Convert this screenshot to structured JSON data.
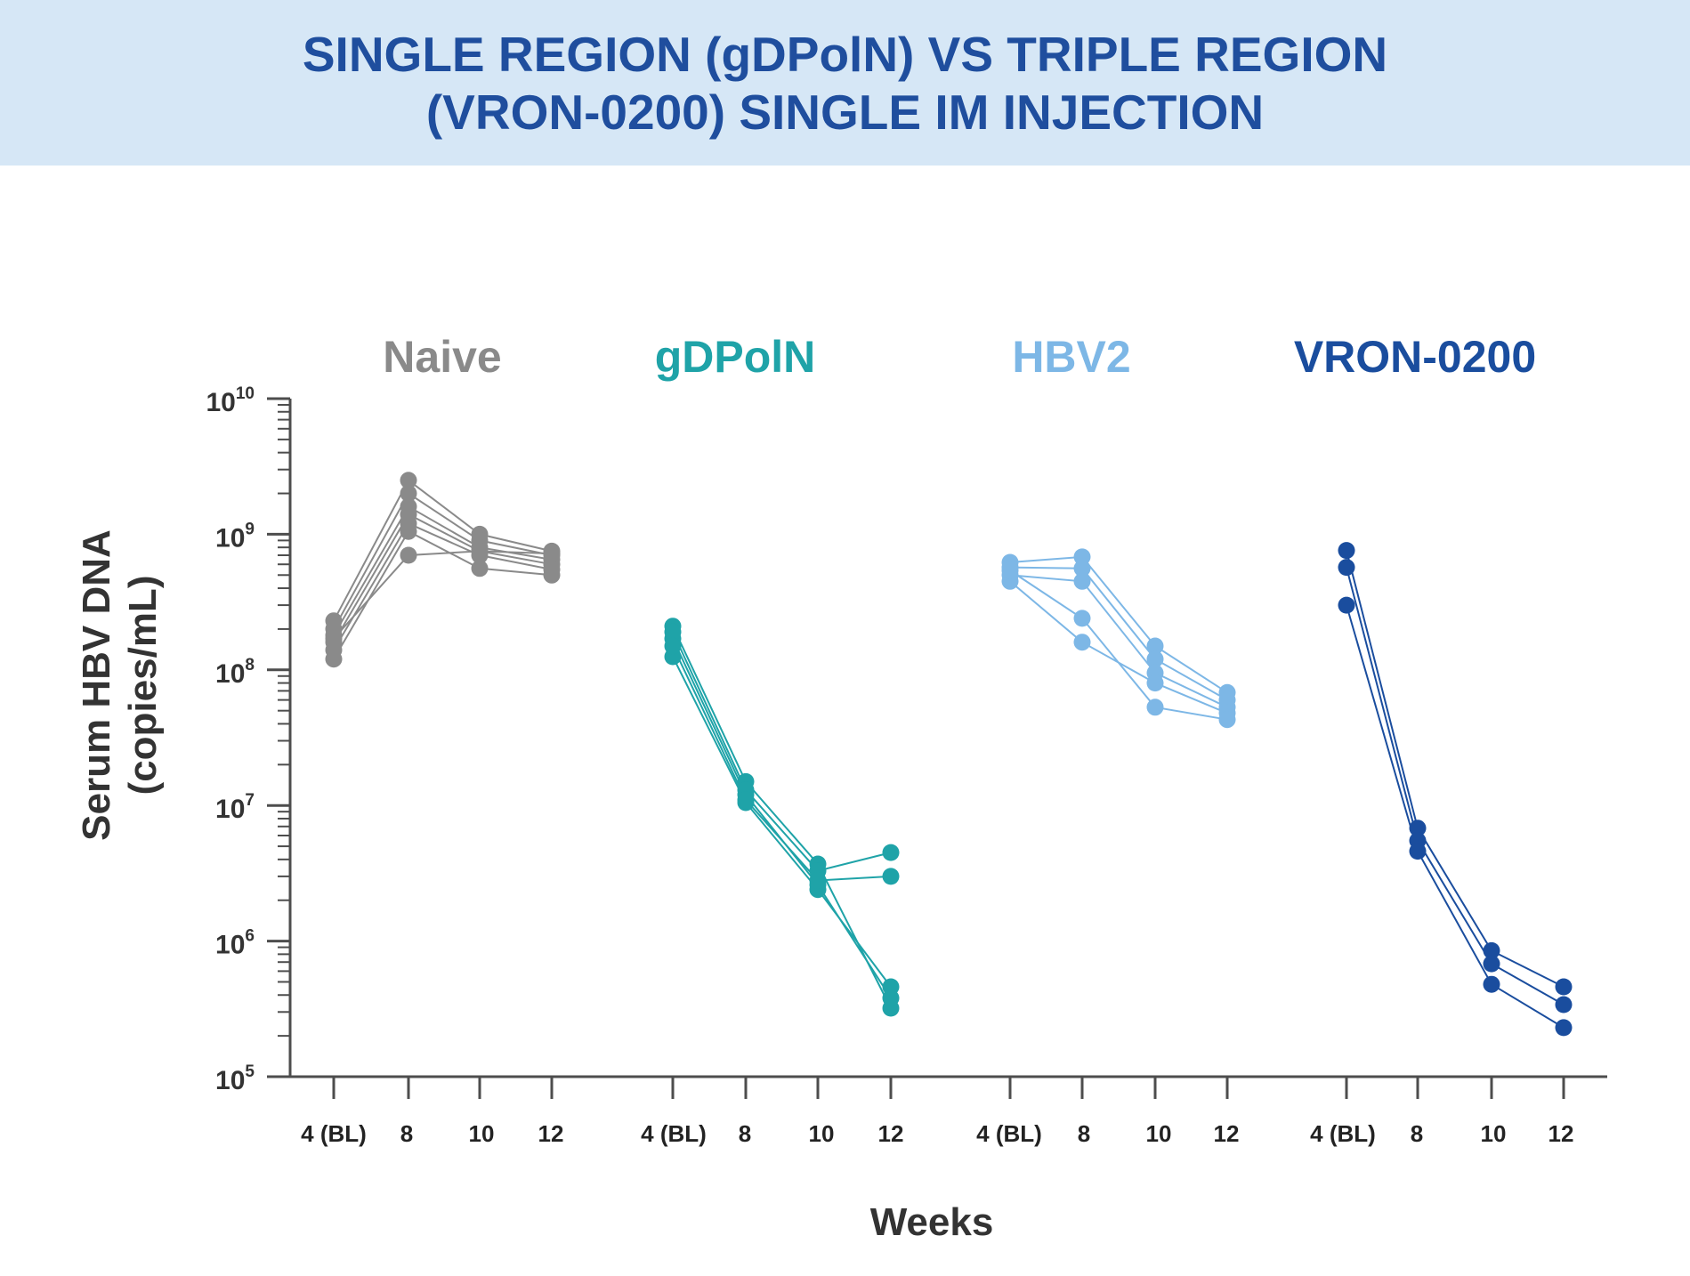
{
  "title_lines": [
    "SINGLE REGION (gDPolN) VS TRIPLE REGION",
    "(VRON-0200) SINGLE IM INJECTION"
  ],
  "colors": {
    "header_bg": "#d6e7f6",
    "title": "#1f4e9e",
    "axis": "#4d4d4d"
  },
  "chart_data": {
    "type": "line",
    "scale": "log",
    "ylim": [
      100000,
      10000000000
    ],
    "ytick_labels": [
      {
        "base": "10",
        "exp": "5"
      },
      {
        "base": "10",
        "exp": "6"
      },
      {
        "base": "10",
        "exp": "7"
      },
      {
        "base": "10",
        "exp": "8"
      },
      {
        "base": "10",
        "exp": "9"
      },
      {
        "base": "10",
        "exp": "10"
      }
    ],
    "ylabel_lines": [
      "Serum HBV DNA",
      "(copies/mL)"
    ],
    "xlabel": "Weeks",
    "x_categories": [
      "4 (BL)",
      "8",
      "10",
      "12"
    ],
    "grid": false,
    "groups": [
      {
        "name": "Naive",
        "color": "#8a8a8a",
        "series": [
          [
            230000000,
            2500000000,
            1000000000,
            750000000
          ],
          [
            200000000,
            2000000000,
            900000000,
            700000000
          ],
          [
            180000000,
            1600000000,
            800000000,
            650000000
          ],
          [
            160000000,
            1400000000,
            750000000,
            600000000
          ],
          [
            140000000,
            1200000000,
            700000000,
            550000000
          ],
          [
            120000000,
            1050000000,
            560000000,
            500000000
          ],
          [
            170000000,
            700000000,
            750000000,
            720000000
          ]
        ]
      },
      {
        "name": "gDPolN",
        "color": "#1fa3a8",
        "series": [
          [
            210000000,
            15000000,
            3700000,
            320000
          ],
          [
            170000000,
            12000000,
            2600000,
            380000
          ],
          [
            125000000,
            10500000,
            2400000,
            460000
          ],
          [
            190000000,
            13000000,
            3300000,
            4500000
          ],
          [
            150000000,
            11000000,
            2800000,
            3000000
          ]
        ]
      },
      {
        "name": "HBV2",
        "color": "#7db7e6",
        "series": [
          [
            620000000,
            680000000,
            150000000,
            68000000
          ],
          [
            570000000,
            560000000,
            120000000,
            60000000
          ],
          [
            500000000,
            450000000,
            95000000,
            53000000
          ],
          [
            450000000,
            160000000,
            80000000,
            48000000
          ],
          [
            540000000,
            240000000,
            53000000,
            43000000
          ]
        ]
      },
      {
        "name": "VRON-0200",
        "color": "#1a4d9e",
        "series": [
          [
            760000000,
            6800000,
            850000,
            460000
          ],
          [
            570000000,
            5500000,
            680000,
            340000
          ],
          [
            300000000,
            4600000,
            480000,
            230000
          ]
        ]
      }
    ]
  }
}
